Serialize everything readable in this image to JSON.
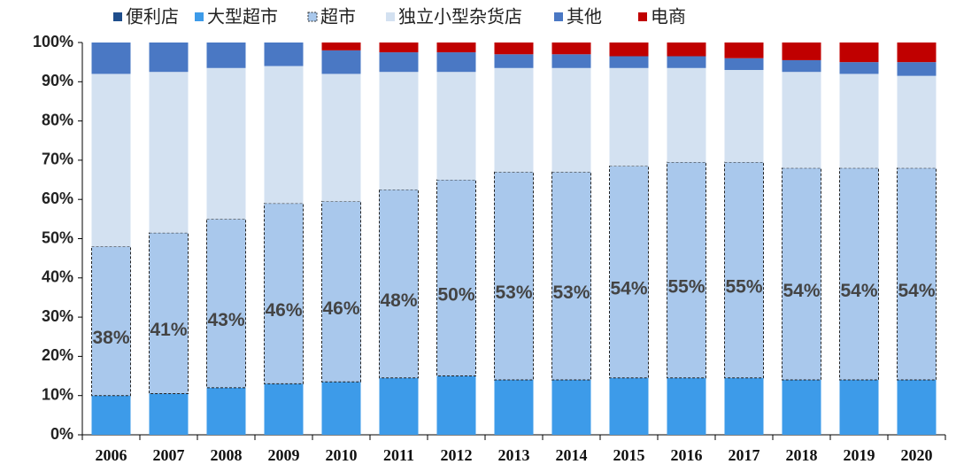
{
  "chart_data": {
    "type": "stacked_bar",
    "categories": [
      "2006",
      "2007",
      "2008",
      "2009",
      "2010",
      "2011",
      "2012",
      "2013",
      "2014",
      "2015",
      "2016",
      "2017",
      "2018",
      "2019",
      "2020"
    ],
    "series": [
      {
        "name": "便利店",
        "color": "#1f4e8c",
        "values": [
          0,
          0,
          0,
          0,
          0,
          0,
          0,
          0,
          0,
          0,
          0,
          0,
          0,
          0,
          0
        ]
      },
      {
        "name": "大型超市",
        "color": "#3d9be9",
        "values": [
          10,
          10.5,
          12,
          13,
          13.5,
          14.5,
          15,
          14,
          14,
          14.5,
          14.5,
          14.5,
          14,
          14,
          14
        ]
      },
      {
        "name": "超市",
        "color": "#a9c8ec",
        "dashed": true,
        "values": [
          38,
          41,
          43,
          46,
          46,
          48,
          50,
          53,
          53,
          54,
          55,
          55,
          54,
          54,
          54
        ],
        "value_labels": [
          "38%",
          "41%",
          "43%",
          "46%",
          "46%",
          "48%",
          "50%",
          "53%",
          "53%",
          "54%",
          "55%",
          "55%",
          "54%",
          "54%",
          "54%"
        ]
      },
      {
        "name": "独立小型杂货店",
        "color": "#d3e1f1",
        "values": [
          44,
          41,
          38.5,
          35,
          32.5,
          30,
          27.5,
          26.5,
          26.5,
          25,
          24,
          23.5,
          24.5,
          24,
          23.5
        ]
      },
      {
        "name": "其他",
        "color": "#4a78c4",
        "values": [
          8,
          7.5,
          6.5,
          6,
          6,
          5,
          5,
          3.5,
          3.5,
          3,
          3,
          3,
          3,
          3,
          3.5
        ]
      },
      {
        "name": "电商",
        "color": "#c00000",
        "values": [
          0,
          0,
          0,
          0,
          2,
          2.5,
          2.5,
          3,
          3,
          3.5,
          3.5,
          4,
          4.5,
          5,
          5
        ]
      }
    ],
    "ylim": [
      0,
      100
    ],
    "yticks": [
      {
        "value": 0,
        "label": "0%"
      },
      {
        "value": 10,
        "label": "10%"
      },
      {
        "value": 20,
        "label": "20%"
      },
      {
        "value": 30,
        "label": "30%"
      },
      {
        "value": 40,
        "label": "40%"
      },
      {
        "value": 50,
        "label": "50%"
      },
      {
        "value": 60,
        "label": "60%"
      },
      {
        "value": 70,
        "label": "70%"
      },
      {
        "value": 80,
        "label": "80%"
      },
      {
        "value": 90,
        "label": "90%"
      },
      {
        "value": 100,
        "label": "100%"
      }
    ]
  }
}
